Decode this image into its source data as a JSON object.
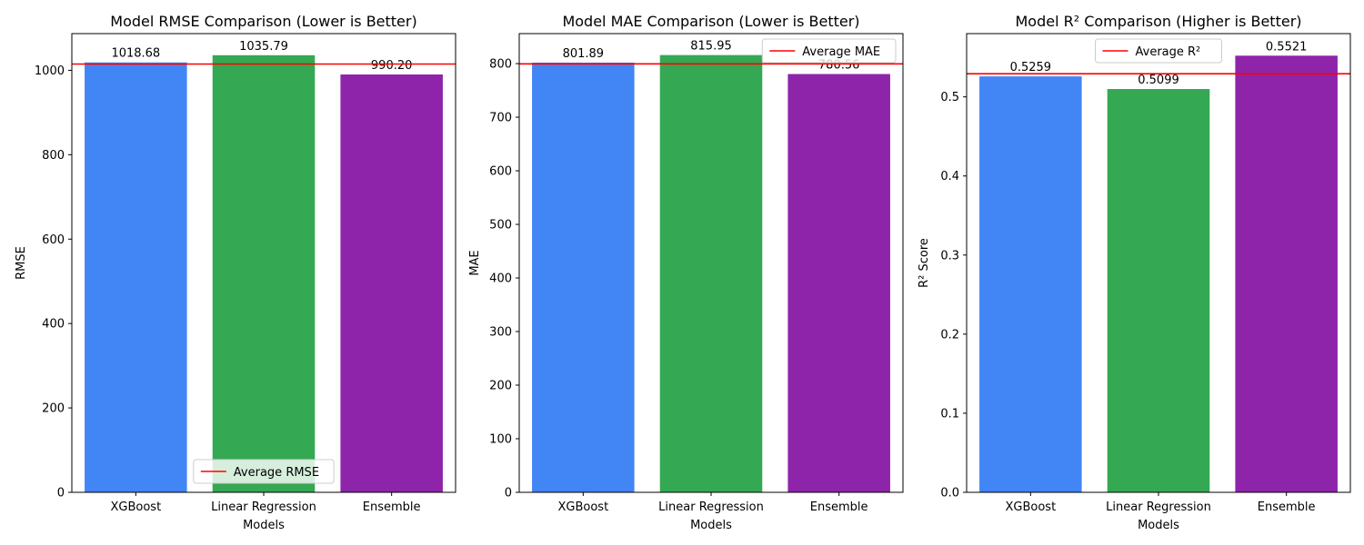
{
  "chart_data": [
    {
      "type": "bar",
      "title": "Model RMSE Comparison (Lower is Better)",
      "xlabel": "Models",
      "ylabel": "RMSE",
      "categories": [
        "XGBoost",
        "Linear Regression",
        "Ensemble"
      ],
      "values": [
        1018.68,
        1035.79,
        990.2
      ],
      "value_labels": [
        "1018.68",
        "1035.79",
        "990.20"
      ],
      "bar_colors": [
        "#4285f4",
        "#34a853",
        "#8e24aa"
      ],
      "ylim": [
        0,
        1087
      ],
      "yticks": [
        0,
        200,
        400,
        600,
        800,
        1000
      ],
      "ytick_labels": [
        "0",
        "200",
        "400",
        "600",
        "800",
        "1000"
      ],
      "reference_line": {
        "label": "Average RMSE",
        "value": 1014.89,
        "color": "#ff0000"
      },
      "legend": {
        "position": "lower-center"
      },
      "grid": false
    },
    {
      "type": "bar",
      "title": "Model MAE Comparison (Lower is Better)",
      "xlabel": "Models",
      "ylabel": "MAE",
      "categories": [
        "XGBoost",
        "Linear Regression",
        "Ensemble"
      ],
      "values": [
        801.89,
        815.95,
        780.56
      ],
      "value_labels": [
        "801.89",
        "815.95",
        "780.56"
      ],
      "bar_colors": [
        "#4285f4",
        "#34a853",
        "#8e24aa"
      ],
      "ylim": [
        0,
        856
      ],
      "yticks": [
        0,
        100,
        200,
        300,
        400,
        500,
        600,
        700,
        800
      ],
      "ytick_labels": [
        "0",
        "100",
        "200",
        "300",
        "400",
        "500",
        "600",
        "700",
        "800"
      ],
      "reference_line": {
        "label": "Average MAE",
        "value": 799.47,
        "color": "#ff0000"
      },
      "legend": {
        "position": "upper-right"
      },
      "grid": false
    },
    {
      "type": "bar",
      "title": "Model R² Comparison (Higher is Better)",
      "xlabel": "Models",
      "ylabel": "R² Score",
      "categories": [
        "XGBoost",
        "Linear Regression",
        "Ensemble"
      ],
      "values": [
        0.5259,
        0.5099,
        0.5521
      ],
      "value_labels": [
        "0.5259",
        "0.5099",
        "0.5521"
      ],
      "bar_colors": [
        "#4285f4",
        "#34a853",
        "#8e24aa"
      ],
      "ylim": [
        0,
        0.58
      ],
      "yticks": [
        0,
        0.1,
        0.2,
        0.3,
        0.4,
        0.5
      ],
      "ytick_labels": [
        "0.0",
        "0.1",
        "0.2",
        "0.3",
        "0.4",
        "0.5"
      ],
      "reference_line": {
        "label": "Average R²",
        "value": 0.5293,
        "color": "#ff0000"
      },
      "legend": {
        "position": "upper-center"
      },
      "grid": false
    }
  ]
}
